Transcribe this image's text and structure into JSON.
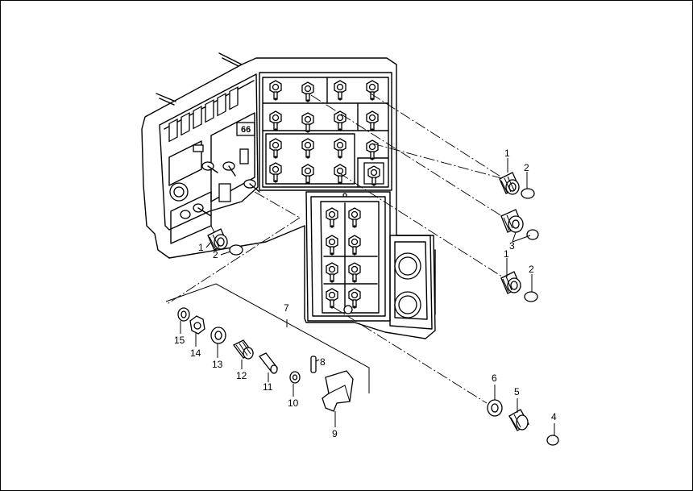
{
  "diagram": {
    "panel_badge": "66",
    "callouts": {
      "c1a": "1",
      "c2a": "2",
      "c1b": "1",
      "c2b": "2",
      "c3": "3",
      "c1c": "1",
      "c2c": "2",
      "c1d": "1",
      "c2d": "2",
      "c4": "4",
      "c5": "5",
      "c6": "6",
      "c7": "7",
      "c8": "8",
      "c9": "9",
      "c10": "10",
      "c11": "11",
      "c12": "12",
      "c13": "13",
      "c14": "14",
      "c15": "15"
    }
  }
}
